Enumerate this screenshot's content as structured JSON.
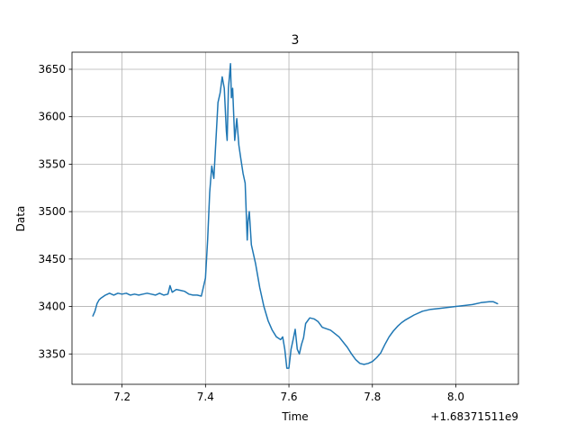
{
  "chart_data": {
    "type": "line",
    "title": "3",
    "xlabel": "Time",
    "ylabel": "Data",
    "x_offset_label": "+1.68371511e9",
    "xlim": [
      7.08,
      8.15
    ],
    "ylim": [
      3318,
      3668
    ],
    "grid": true,
    "legend": "none",
    "x_ticks": [
      {
        "value": 7.2,
        "label": "7.2"
      },
      {
        "value": 7.4,
        "label": "7.4"
      },
      {
        "value": 7.6,
        "label": "7.6"
      },
      {
        "value": 7.8,
        "label": "7.8"
      },
      {
        "value": 8.0,
        "label": "8.0"
      }
    ],
    "y_ticks": [
      {
        "value": 3350,
        "label": "3350"
      },
      {
        "value": 3400,
        "label": "3400"
      },
      {
        "value": 3450,
        "label": "3450"
      },
      {
        "value": 3500,
        "label": "3500"
      },
      {
        "value": 3550,
        "label": "3550"
      },
      {
        "value": 3600,
        "label": "3600"
      },
      {
        "value": 3650,
        "label": "3650"
      }
    ],
    "series": [
      {
        "color": "#1f77b4",
        "x": [
          7.13,
          7.135,
          7.14,
          7.145,
          7.15,
          7.16,
          7.17,
          7.18,
          7.19,
          7.2,
          7.21,
          7.22,
          7.23,
          7.24,
          7.25,
          7.26,
          7.27,
          7.28,
          7.29,
          7.3,
          7.31,
          7.315,
          7.32,
          7.33,
          7.34,
          7.35,
          7.36,
          7.37,
          7.38,
          7.39,
          7.4,
          7.405,
          7.41,
          7.415,
          7.42,
          7.425,
          7.43,
          7.435,
          7.44,
          7.445,
          7.45,
          7.452,
          7.455,
          7.46,
          7.462,
          7.465,
          7.47,
          7.475,
          7.48,
          7.485,
          7.49,
          7.495,
          7.5,
          7.502,
          7.505,
          7.51,
          7.52,
          7.53,
          7.54,
          7.55,
          7.56,
          7.57,
          7.58,
          7.585,
          7.59,
          7.595,
          7.6,
          7.605,
          7.61,
          7.615,
          7.62,
          7.625,
          7.63,
          7.635,
          7.64,
          7.65,
          7.66,
          7.67,
          7.68,
          7.7,
          7.72,
          7.74,
          7.75,
          7.76,
          7.77,
          7.78,
          7.79,
          7.8,
          7.81,
          7.82,
          7.83,
          7.84,
          7.85,
          7.86,
          7.87,
          7.88,
          7.9,
          7.92,
          7.94,
          7.96,
          7.98,
          8.0,
          8.02,
          8.04,
          8.06,
          8.08,
          8.09,
          8.1
        ],
        "y": [
          3390,
          3395,
          3403,
          3407,
          3409,
          3412,
          3414,
          3412,
          3414,
          3413,
          3414,
          3412,
          3413,
          3412,
          3413,
          3414,
          3413,
          3412,
          3414,
          3412,
          3413,
          3422,
          3415,
          3418,
          3417,
          3416,
          3413,
          3412,
          3412,
          3411,
          3430,
          3470,
          3520,
          3548,
          3535,
          3575,
          3615,
          3625,
          3642,
          3630,
          3585,
          3575,
          3630,
          3656,
          3620,
          3630,
          3575,
          3598,
          3570,
          3555,
          3540,
          3530,
          3470,
          3490,
          3500,
          3465,
          3445,
          3420,
          3400,
          3385,
          3375,
          3368,
          3365,
          3368,
          3355,
          3335,
          3335,
          3355,
          3365,
          3376,
          3355,
          3350,
          3360,
          3367,
          3382,
          3388,
          3387,
          3384,
          3378,
          3375,
          3368,
          3357,
          3350,
          3344,
          3340,
          3339,
          3340,
          3342,
          3346,
          3351,
          3360,
          3368,
          3374,
          3379,
          3383,
          3386,
          3391,
          3395,
          3397,
          3398,
          3399,
          3400,
          3401,
          3402,
          3404,
          3405,
          3405,
          3403
        ]
      }
    ]
  }
}
